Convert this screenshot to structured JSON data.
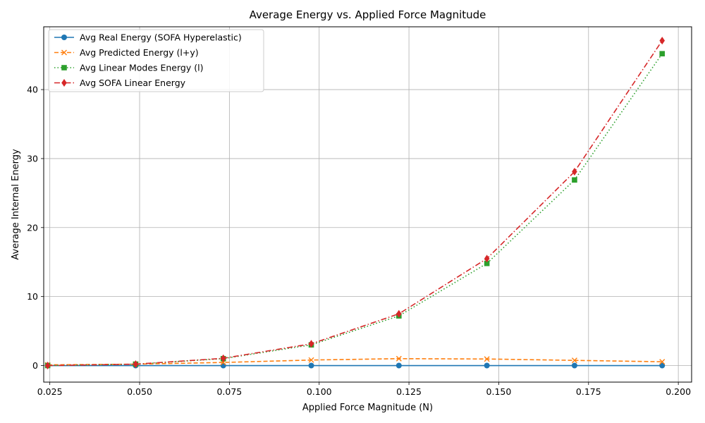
{
  "chart_data": {
    "type": "line",
    "title": "Average Energy vs. Applied Force Magnitude",
    "xlabel": "Applied Force Magnitude (N)",
    "ylabel": "Average Internal Energy",
    "xlim": [
      0.0233,
      0.2037
    ],
    "ylim": [
      -2.4,
      49.1
    ],
    "grid": true,
    "legend_position": "top-left",
    "x_ticks": [
      0.025,
      0.05,
      0.075,
      0.1,
      0.125,
      0.15,
      0.175,
      0.2
    ],
    "x_tick_labels": [
      "0.025",
      "0.050",
      "0.075",
      "0.100",
      "0.125",
      "0.150",
      "0.175",
      "0.200"
    ],
    "y_ticks": [
      0,
      10,
      20,
      30,
      40
    ],
    "y_tick_labels": [
      "0",
      "10",
      "20",
      "30",
      "40"
    ],
    "x": [
      0.0244,
      0.0489,
      0.0733,
      0.0978,
      0.1222,
      0.1467,
      0.1711,
      0.1955
    ],
    "series": [
      {
        "name": "Avg Real Energy (SOFA Hyperelastic)",
        "color": "#1f77b4",
        "line_style": "solid",
        "marker": "circle",
        "values": [
          0.0,
          0.0,
          0.0,
          0.0,
          0.0,
          0.0,
          0.0,
          0.0
        ]
      },
      {
        "name": "Avg Predicted Energy (l+y)",
        "color": "#ff7f0e",
        "line_style": "dashed",
        "marker": "x",
        "values": [
          0.1,
          0.2,
          0.45,
          0.8,
          1.0,
          0.95,
          0.75,
          0.55
        ]
      },
      {
        "name": "Avg Linear Modes Energy (l)",
        "color": "#2ca02c",
        "line_style": "dotted",
        "marker": "square",
        "values": [
          0.0,
          0.2,
          1.0,
          3.0,
          7.2,
          14.8,
          26.9,
          45.2
        ]
      },
      {
        "name": "Avg SOFA Linear Energy",
        "color": "#d62728",
        "line_style": "dashdot",
        "marker": "diamond",
        "values": [
          0.0,
          0.2,
          1.05,
          3.15,
          7.5,
          15.5,
          28.1,
          47.1
        ]
      }
    ]
  }
}
